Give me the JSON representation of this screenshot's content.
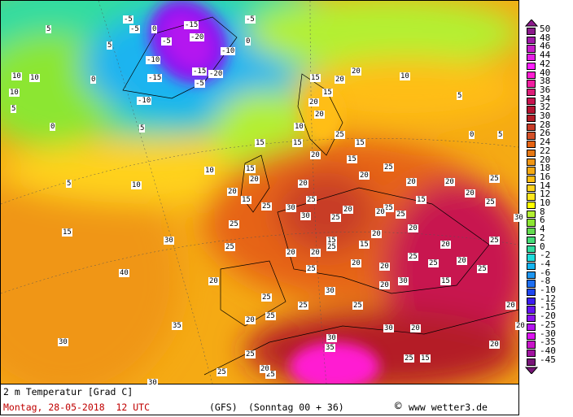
{
  "title": "2 m Temperatur [Grad C]",
  "date": "Montag, 28-05-2018  12 UTC",
  "model": "(GFS)",
  "run": "(Sonntag 00 + 36)",
  "copyright_symbol": "©",
  "site": "www wetter3.de",
  "date_color": "#c00000",
  "legend": {
    "values": [
      "50",
      "48",
      "46",
      "44",
      "42",
      "40",
      "38",
      "36",
      "34",
      "32",
      "30",
      "28",
      "26",
      "24",
      "22",
      "20",
      "18",
      "16",
      "14",
      "12",
      "10",
      "8",
      "6",
      "4",
      "2",
      "0",
      "-2",
      "-4",
      "-6",
      "-8",
      "-10",
      "-12",
      "-15",
      "-20",
      "-25",
      "-30",
      "-35",
      "-40",
      "-45"
    ],
    "colors": [
      "#8c1a8c",
      "#a01aa8",
      "#c81ec8",
      "#e61ee6",
      "#ff1eff",
      "#ff1ed2",
      "#f01ea0",
      "#dc1e78",
      "#c81450",
      "#b41432",
      "#b41e28",
      "#c83c28",
      "#d25028",
      "#e66414",
      "#e67814",
      "#f09614",
      "#f5aa14",
      "#ffbe14",
      "#ffd21e",
      "#ffe61e",
      "#ffff00",
      "#b4f032",
      "#8ce632",
      "#64dc50",
      "#46dc78",
      "#32dca0",
      "#1edcdc",
      "#14b4f0",
      "#1e96f0",
      "#1e6ef0",
      "#1e46f0",
      "#3c1ef0",
      "#6414f0",
      "#8c14f0",
      "#b414f0",
      "#dc14f0",
      "#c814c8",
      "#a0149f",
      "#781478"
    ]
  },
  "map_labels": [
    "-5",
    "-5",
    "0",
    "5",
    "0",
    "-15",
    "-20",
    "-5",
    "-10",
    "-10",
    "-15",
    "-15",
    "-5",
    "-20",
    "-10",
    "-5",
    "0",
    "5",
    "10",
    "10",
    "10",
    "5",
    "0",
    "5",
    "5",
    "10",
    "15",
    "10",
    "15",
    "20",
    "20",
    "15",
    "20",
    "25",
    "15",
    "20",
    "25",
    "15",
    "20",
    "25",
    "20",
    "15",
    "20",
    "25",
    "25",
    "30",
    "25",
    "20",
    "20",
    "25",
    "20",
    "15",
    "15",
    "20",
    "25",
    "25",
    "20",
    "20",
    "30",
    "25",
    "25",
    "20",
    "25",
    "25",
    "20",
    "25",
    "30",
    "20",
    "20",
    "20",
    "25",
    "20",
    "25",
    "20",
    "25",
    "25",
    "30",
    "25",
    "30",
    "20",
    "15",
    "20",
    "20",
    "20",
    "25",
    "25",
    "20",
    "25",
    "30",
    "30",
    "35",
    "40",
    "30",
    "25",
    "30",
    "25",
    "20",
    "15",
    "20",
    "15",
    "10",
    "15",
    "20",
    "20",
    "15",
    "10",
    "5",
    "0",
    "5",
    "15",
    "20",
    "25",
    "30",
    "35"
  ]
}
